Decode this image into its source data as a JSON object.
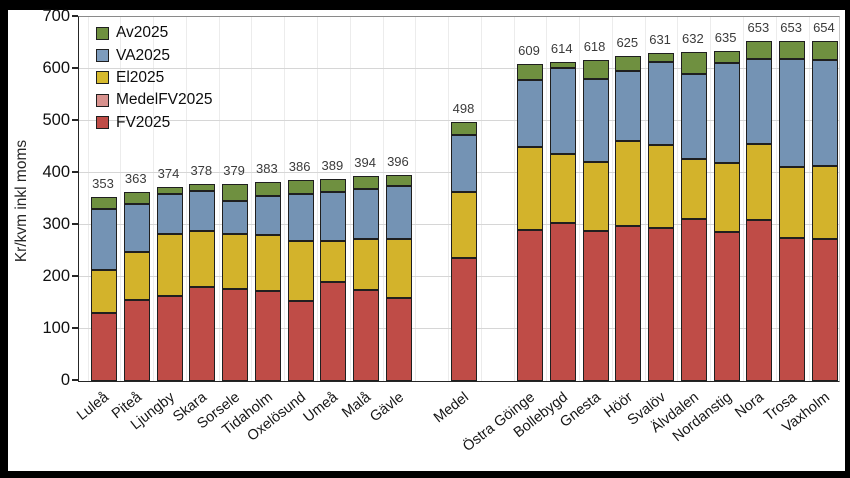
{
  "chart_data": {
    "type": "bar",
    "stacked": true,
    "grid": true,
    "legend_position": "top-left",
    "ylabel": "Kr/kvm inkl moms",
    "ylim": [
      0,
      700
    ],
    "ytick_step": 100,
    "yticks": [
      0,
      100,
      200,
      300,
      400,
      500,
      600,
      700
    ],
    "categories": [
      "Luleå",
      "Piteå",
      "Ljungby",
      "Skara",
      "Sorsele",
      "Tidaholm",
      "Oxelösund",
      "Umeå",
      "Malå",
      "Gävle",
      "Medel",
      "Östra Göinge",
      "Bollebygd",
      "Gnesta",
      "Höör",
      "Svalöv",
      "Älvdalen",
      "Nordanstig",
      "Nora",
      "Trosa",
      "Vaxholm"
    ],
    "totals": [
      353,
      363,
      374,
      378,
      379,
      383,
      386,
      389,
      394,
      396,
      498,
      609,
      614,
      618,
      625,
      631,
      632,
      635,
      653,
      653,
      654
    ],
    "series": [
      {
        "name": "FV2025",
        "color": "#bf4c47",
        "values": [
          130,
          156,
          163,
          180,
          177,
          174,
          153,
          190,
          175,
          159,
          null,
          291,
          304,
          288,
          298,
          295,
          311,
          286,
          309,
          275,
          274
        ]
      },
      {
        "name": "MedelFV2025",
        "color": "#bf4c47",
        "values": [
          null,
          null,
          null,
          null,
          null,
          null,
          null,
          null,
          null,
          null,
          237,
          null,
          null,
          null,
          null,
          null,
          null,
          null,
          null,
          null,
          null
        ]
      },
      {
        "name": "El2025",
        "color": "#d3b32b",
        "values": [
          84,
          93,
          119,
          108,
          105,
          106,
          117,
          80,
          98,
          114,
          126,
          159,
          132,
          134,
          163,
          158,
          116,
          134,
          147,
          137,
          140
        ]
      },
      {
        "name": "VA2025",
        "color": "#7493b4",
        "values": [
          117,
          92,
          78,
          78,
          65,
          76,
          90,
          94,
          97,
          102,
          110,
          128,
          165,
          159,
          136,
          161,
          164,
          192,
          163,
          208,
          204
        ]
      },
      {
        "name": "Av2025",
        "color": "#6f9040",
        "values": [
          22,
          22,
          14,
          12,
          32,
          27,
          26,
          25,
          24,
          21,
          25,
          31,
          13,
          37,
          28,
          17,
          41,
          23,
          34,
          33,
          36
        ]
      }
    ],
    "legend": [
      {
        "label": "Av2025",
        "color": "#6f9040"
      },
      {
        "label": "VA2025",
        "color": "#7d9cbd"
      },
      {
        "label": "El2025",
        "color": "#d6ba2e"
      },
      {
        "label": "MedelFV2025",
        "color": "#d8928e"
      },
      {
        "label": "FV2025",
        "color": "#bf4c47"
      }
    ]
  }
}
